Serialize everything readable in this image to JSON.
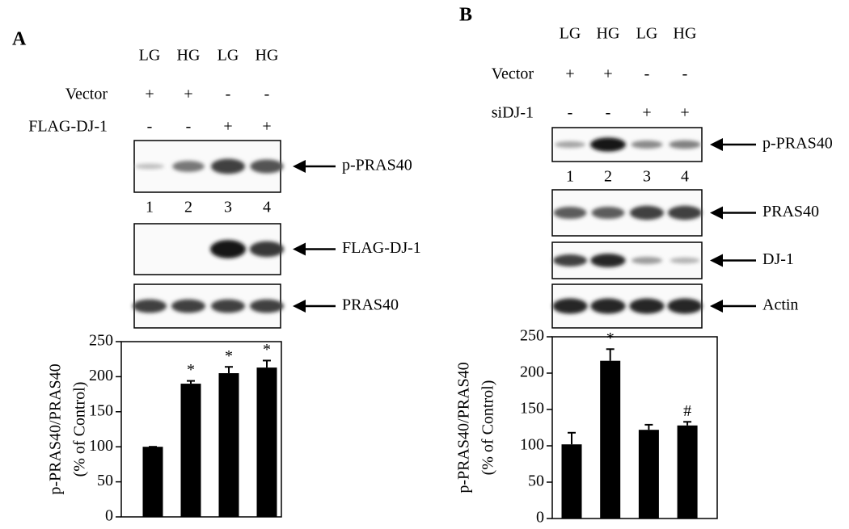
{
  "panels": [
    {
      "label": "A",
      "conditions": [
        "LG",
        "HG",
        "LG",
        "HG"
      ],
      "rows": [
        {
          "label": "Vector",
          "marks": [
            "+",
            "+",
            "-",
            "-"
          ]
        },
        {
          "label": "FLAG-DJ-1",
          "marks": [
            "-",
            "-",
            "+",
            "+"
          ]
        }
      ],
      "lanes": [
        "1",
        "2",
        "3",
        "4"
      ],
      "blots": [
        "p-PRAS40",
        "FLAG-DJ-1",
        "PRAS40"
      ]
    },
    {
      "label": "B",
      "conditions": [
        "LG",
        "HG",
        "LG",
        "HG"
      ],
      "rows": [
        {
          "label": "Vector",
          "marks": [
            "+",
            "+",
            "-",
            "-"
          ]
        },
        {
          "label": "siDJ-1",
          "marks": [
            "-",
            "-",
            "+",
            "+"
          ]
        }
      ],
      "lanes": [
        "1",
        "2",
        "3",
        "4"
      ],
      "blots": [
        "p-PRAS40",
        "PRAS40",
        "DJ-1",
        "Actin"
      ]
    }
  ],
  "chart_data": [
    {
      "type": "bar",
      "y_label": [
        "p-PRAS40/PRAS40",
        "(% of Control)"
      ],
      "categories": [
        null,
        null,
        null,
        null
      ],
      "values": [
        100,
        190,
        205,
        213
      ],
      "errors": [
        0,
        4,
        9,
        10
      ],
      "annotations": [
        null,
        "*",
        "*",
        "*"
      ],
      "color": "#000000",
      "ylim": [
        0,
        250
      ],
      "yticks": [
        0,
        50,
        100,
        150,
        200,
        250
      ]
    },
    {
      "type": "bar",
      "y_label": [
        "p-PRAS40/PRAS40",
        "(% of Control)"
      ],
      "categories": [
        null,
        null,
        null,
        null
      ],
      "values": [
        102,
        217,
        122,
        128
      ],
      "errors": [
        16,
        16,
        7,
        5
      ],
      "annotations": [
        null,
        "*",
        null,
        "#"
      ],
      "color": "#000000",
      "ylim": [
        0,
        250
      ],
      "yticks": [
        0,
        50,
        100,
        150,
        200,
        250
      ]
    }
  ]
}
